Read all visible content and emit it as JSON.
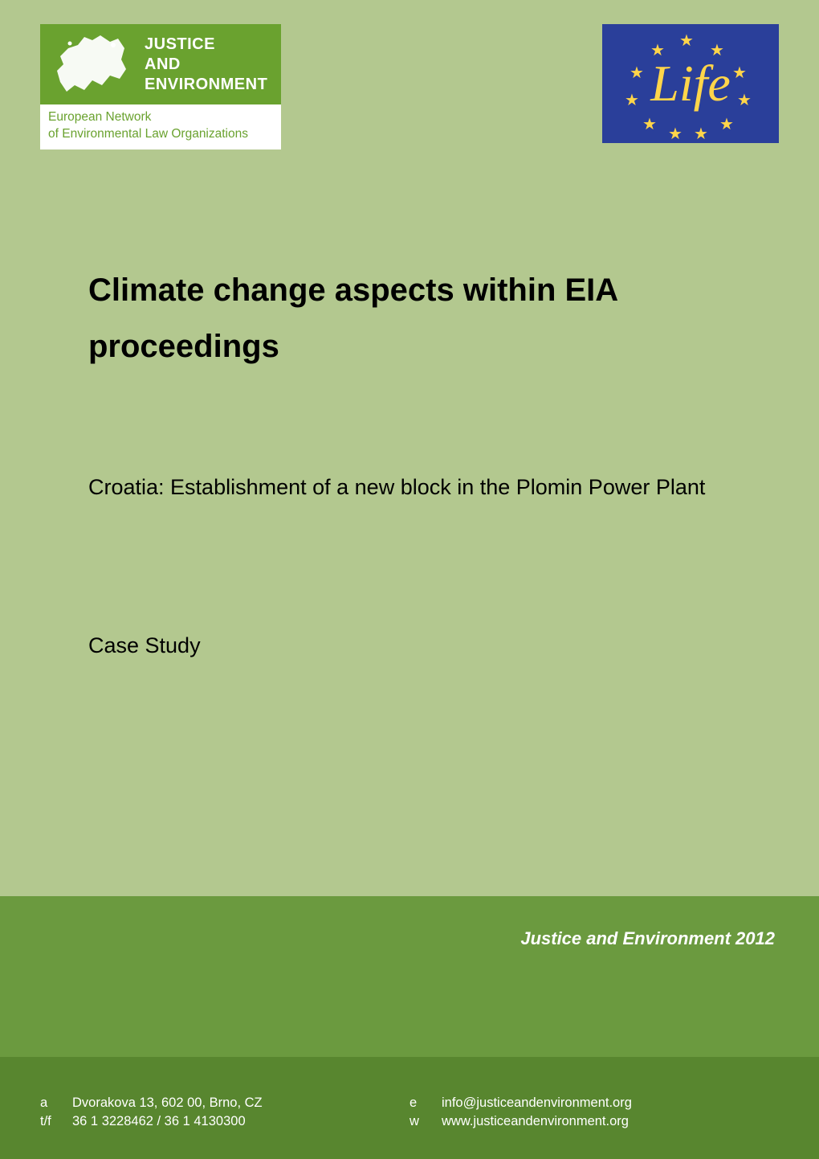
{
  "colors": {
    "upper_bg": "#b3c88f",
    "band_bg": "#6b9a3f",
    "footer_bg": "#58862f",
    "je_logo_bg": "#6aa22f",
    "je_logo_text_color": "#6aa22f",
    "life_bg": "#2a3f9a",
    "star_color": "#ffd54a"
  },
  "logo": {
    "line1": "JUSTICE",
    "line2": "AND",
    "line3": "ENVIRONMENT",
    "subtitle1": "European Network",
    "subtitle2": "of Environmental Law Organizations"
  },
  "life": {
    "text": "Life"
  },
  "document": {
    "title": "Climate change aspects within EIA proceedings",
    "subtitle": "Croatia: Establishment of a new block in the Plomin Power Plant",
    "type": "Case Study"
  },
  "band": {
    "text": "Justice and Environment 2012"
  },
  "footer": {
    "rows": [
      {
        "label_left": "a",
        "value_left": "Dvorakova 13, 602 00, Brno, CZ",
        "label_right": "e",
        "value_right": "info@justiceandenvironment.org"
      },
      {
        "label_left": "t/f",
        "value_left": "36 1 3228462  /  36 1 4130300",
        "label_right": "w",
        "value_right": "www.justiceandenvironment.org"
      }
    ]
  }
}
